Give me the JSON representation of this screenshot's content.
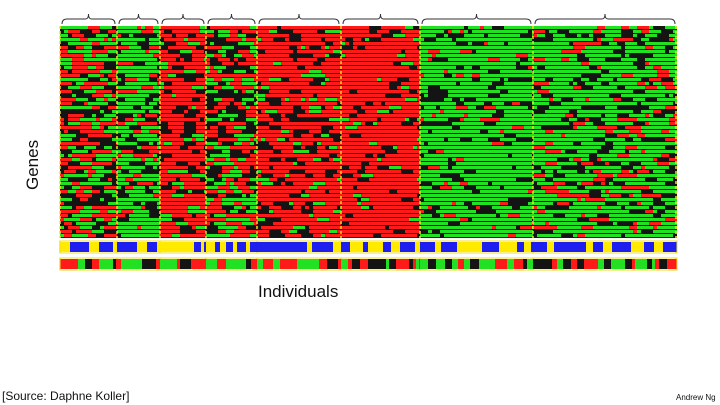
{
  "slide": {
    "source_text": "[Source: Daphne Koller]",
    "author_text": "Andrew Ng"
  },
  "chart_data": {
    "type": "heatmap",
    "title": "",
    "xlabel": "Individuals",
    "ylabel": "Genes",
    "legend": "none",
    "grid": false,
    "colors": {
      "high": "#ff1a1a",
      "low": "#22e022",
      "neutral": "#141414",
      "cluster_border": "#f0e020",
      "annotation_a": "#1e1eee",
      "annotation_b": "#ffea00",
      "brace": "#333333"
    },
    "clusters": [
      {
        "id": 1,
        "tendency": "mixed"
      },
      {
        "id": 2,
        "tendency": "mostly-low"
      },
      {
        "id": 3,
        "tendency": "mostly-high"
      },
      {
        "id": 4,
        "tendency": "mixed"
      },
      {
        "id": 5,
        "tendency": "mostly-high"
      },
      {
        "id": 6,
        "tendency": "high"
      },
      {
        "id": 7,
        "tendency": "low"
      },
      {
        "id": 8,
        "tendency": "mostly-low"
      }
    ]
  }
}
